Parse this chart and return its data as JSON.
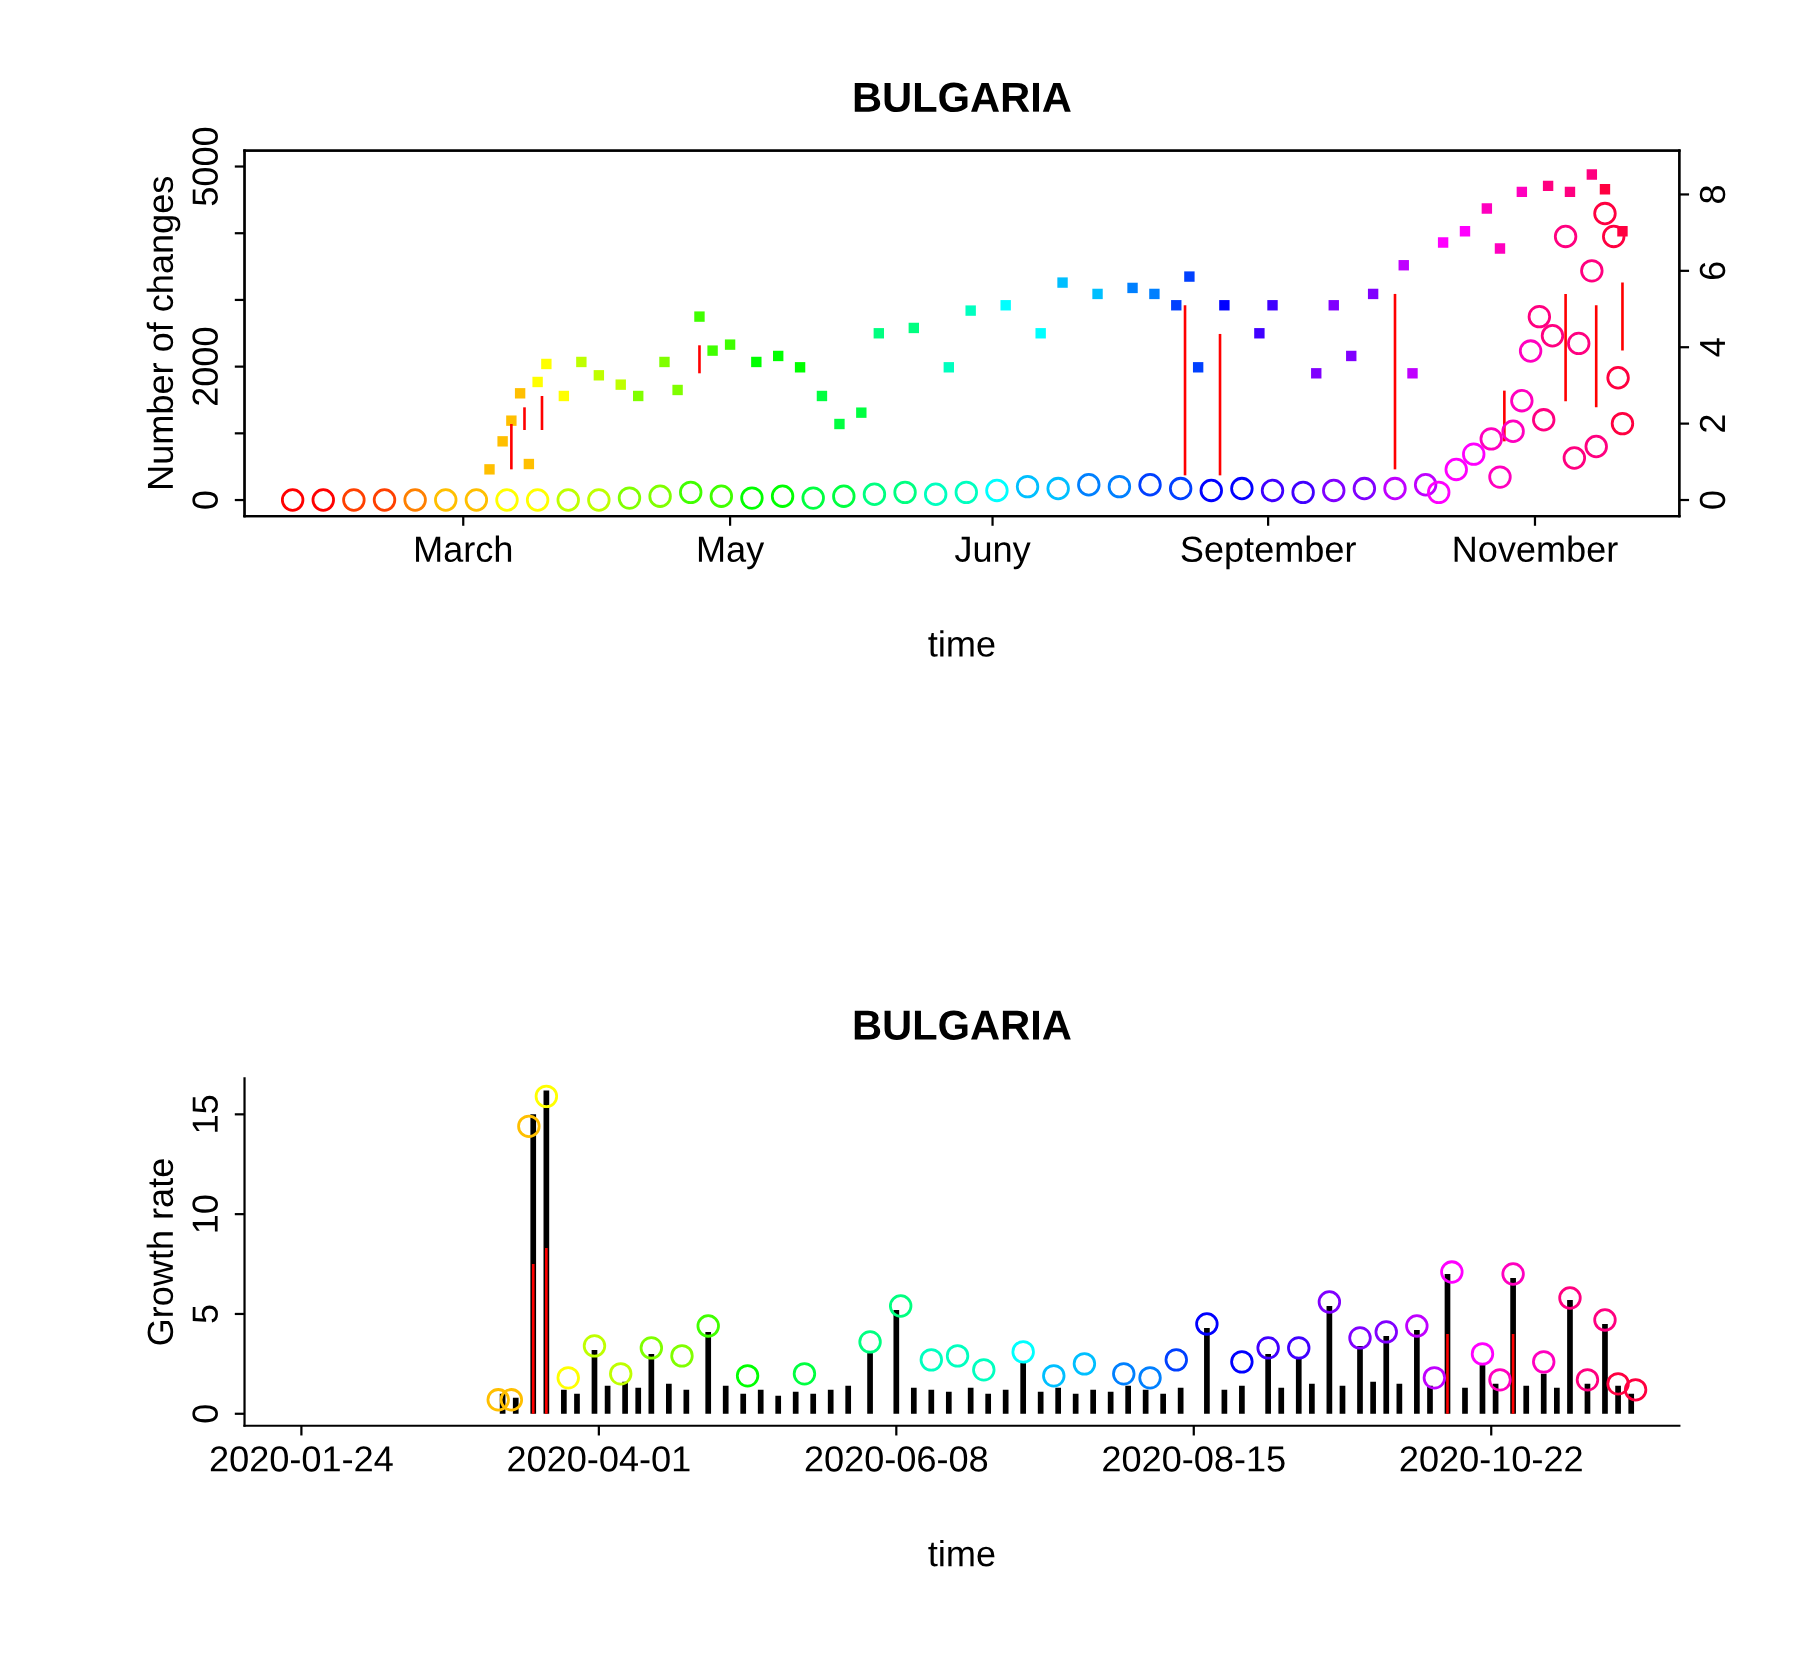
{
  "chart_data": [
    {
      "type": "scatter",
      "title": "BULGARIA",
      "xlabel": "time",
      "ylabel": "Number of changes",
      "xlim": [
        "2020-01-11",
        "2020-12-04"
      ],
      "xticks": [
        {
          "value": "2020-03-01",
          "label": "March"
        },
        {
          "value": "2020-05-01",
          "label": "May"
        },
        {
          "value": "2020-06-30",
          "label": "Juny"
        },
        {
          "value": "2020-09-01",
          "label": "September"
        },
        {
          "value": "2020-11-01",
          "label": "November"
        }
      ],
      "ylim": [
        -240,
        5240
      ],
      "yticks": [
        0,
        {
          "value": 1000,
          "label": null
        },
        2000,
        {
          "value": 3000,
          "label": null
        },
        {
          "value": 4000,
          "label": null
        },
        5000
      ],
      "y2lim": [
        -0.42,
        9.15
      ],
      "y2ticks": [
        0,
        2,
        4,
        6,
        8
      ],
      "legend": false,
      "grid": false,
      "series": [
        {
          "marker": "square",
          "x": [
            "2020-03-07",
            "2020-03-10",
            "2020-03-12",
            "2020-03-14",
            "2020-03-16",
            "2020-03-18",
            "2020-03-20",
            "2020-03-24",
            "2020-03-28",
            "2020-04-01",
            "2020-04-06",
            "2020-04-10",
            "2020-04-16",
            "2020-04-19",
            "2020-04-24",
            "2020-04-27",
            "2020-05-01",
            "2020-05-07",
            "2020-05-12",
            "2020-05-17",
            "2020-05-22",
            "2020-05-26",
            "2020-05-31",
            "2020-06-04",
            "2020-06-12",
            "2020-06-20",
            "2020-06-25",
            "2020-07-03",
            "2020-07-11",
            "2020-07-16",
            "2020-07-24",
            "2020-08-01",
            "2020-08-06",
            "2020-08-11",
            "2020-08-14",
            "2020-08-16",
            "2020-08-22",
            "2020-08-30",
            "2020-09-02",
            "2020-09-12",
            "2020-09-16",
            "2020-09-20",
            "2020-09-25",
            "2020-10-02",
            "2020-10-04",
            "2020-10-11",
            "2020-10-16",
            "2020-10-21",
            "2020-10-24",
            "2020-10-29",
            "2020-11-04",
            "2020-11-09",
            "2020-11-14",
            "2020-11-17",
            "2020-11-21"
          ],
          "values": [
            460,
            880,
            1190,
            1600,
            540,
            1770,
            2040,
            1560,
            2070,
            1870,
            1730,
            1560,
            2070,
            1650,
            2750,
            2240,
            2330,
            2070,
            2160,
            1990,
            1560,
            1140,
            1310,
            2500,
            2580,
            1990,
            2840,
            2920,
            2500,
            3260,
            3090,
            3180,
            3090,
            2920,
            3350,
            1990,
            2920,
            2500,
            2920,
            1900,
            2920,
            2160,
            3090,
            3520,
            1900,
            3860,
            4030,
            4370,
            3770,
            4620,
            4710,
            4620,
            4880,
            4660,
            4030
          ],
          "colors": [
            "#ffbf00",
            "#ffbf00",
            "#ffbf00",
            "#ffbf00",
            "#ffbf00",
            "#ffff00",
            "#ffff00",
            "#ffff00",
            "#bfff00",
            "#bfff00",
            "#bfff00",
            "#80ff00",
            "#80ff00",
            "#80ff00",
            "#40ff00",
            "#40ff00",
            "#40ff00",
            "#00ff00",
            "#00ff00",
            "#00ff00",
            "#00ff40",
            "#00ff40",
            "#00ff40",
            "#00ff80",
            "#00ff80",
            "#00ffbf",
            "#00ffbf",
            "#00ffff",
            "#00ffff",
            "#00bfff",
            "#00bfff",
            "#0080ff",
            "#0080ff",
            "#0040ff",
            "#0040ff",
            "#0040ff",
            "#0000ff",
            "#4000ff",
            "#4000ff",
            "#8000ff",
            "#8000ff",
            "#8000ff",
            "#8000ff",
            "#bf00ff",
            "#bf00ff",
            "#ff00ff",
            "#ff00ff",
            "#ff00bf",
            "#ff00bf",
            "#ff00bf",
            "#ff0080",
            "#ff0080",
            "#ff0080",
            "#ff0040",
            "#ff0040"
          ]
        },
        {
          "marker": "circle",
          "axis": "y2",
          "x": [
            "2020-01-22",
            "2020-01-29",
            "2020-02-05",
            "2020-02-12",
            "2020-02-19",
            "2020-02-26",
            "2020-03-04",
            "2020-03-11",
            "2020-03-18",
            "2020-03-25",
            "2020-04-01",
            "2020-04-08",
            "2020-04-15",
            "2020-04-22",
            "2020-04-29",
            "2020-05-06",
            "2020-05-13",
            "2020-05-20",
            "2020-05-27",
            "2020-06-03",
            "2020-06-10",
            "2020-06-17",
            "2020-06-24",
            "2020-07-01",
            "2020-07-08",
            "2020-07-15",
            "2020-07-22",
            "2020-07-29",
            "2020-08-05",
            "2020-08-12",
            "2020-08-19",
            "2020-08-26",
            "2020-09-02",
            "2020-09-09",
            "2020-09-16",
            "2020-09-23",
            "2020-09-30",
            "2020-10-07",
            "2020-10-10",
            "2020-10-14",
            "2020-10-18",
            "2020-10-22",
            "2020-10-24",
            "2020-10-27",
            "2020-10-29",
            "2020-10-31",
            "2020-11-02",
            "2020-11-03",
            "2020-11-05",
            "2020-11-08",
            "2020-11-10",
            "2020-11-11",
            "2020-11-14",
            "2020-11-15",
            "2020-11-17",
            "2020-11-19",
            "2020-11-20",
            "2020-11-21"
          ],
          "values": [
            0,
            0,
            0,
            0,
            0,
            0,
            0,
            0,
            0,
            0,
            0,
            0.05,
            0.1,
            0.2,
            0.1,
            0.05,
            0.1,
            0.05,
            0.1,
            0.15,
            0.2,
            0.15,
            0.2,
            0.25,
            0.35,
            0.3,
            0.4,
            0.35,
            0.4,
            0.3,
            0.25,
            0.3,
            0.25,
            0.2,
            0.25,
            0.3,
            0.3,
            0.4,
            0.2,
            0.8,
            1.2,
            1.6,
            0.6,
            1.8,
            2.6,
            3.9,
            4.8,
            2.1,
            4.3,
            6.9,
            1.1,
            4.1,
            6.0,
            1.4,
            7.5,
            6.9,
            3.2,
            2.0
          ],
          "colors": [
            "#ff0000",
            "#ff0000",
            "#ff4000",
            "#ff4000",
            "#ff8000",
            "#ffbf00",
            "#ffbf00",
            "#ffff00",
            "#ffff00",
            "#bfff00",
            "#bfff00",
            "#80ff00",
            "#80ff00",
            "#40ff00",
            "#40ff00",
            "#00ff00",
            "#00ff00",
            "#00ff40",
            "#00ff40",
            "#00ff80",
            "#00ff80",
            "#00ffbf",
            "#00ffbf",
            "#00ffff",
            "#00bfff",
            "#00bfff",
            "#0080ff",
            "#0080ff",
            "#0040ff",
            "#0040ff",
            "#0000ff",
            "#0000ff",
            "#4000ff",
            "#4000ff",
            "#8000ff",
            "#8000ff",
            "#bf00ff",
            "#bf00ff",
            "#ff00ff",
            "#ff00ff",
            "#ff00ff",
            "#ff00bf",
            "#ff00bf",
            "#ff00bf",
            "#ff00bf",
            "#ff00bf",
            "#ff0080",
            "#ff0080",
            "#ff0080",
            "#ff0080",
            "#ff0080",
            "#ff0080",
            "#ff0080",
            "#ff0080",
            "#ff0040",
            "#ff0040",
            "#ff0040",
            "#ff0040"
          ]
        },
        {
          "type": "bar",
          "color": "#ff0000",
          "x": [
            "2020-03-12",
            "2020-03-15",
            "2020-03-19",
            "2020-04-24",
            "2020-08-13",
            "2020-08-21",
            "2020-09-30",
            "2020-10-25",
            "2020-11-08",
            "2020-11-15",
            "2020-11-21"
          ],
          "base": [
            460,
            1050,
            1050,
            1900,
            370,
            370,
            460,
            880,
            1480,
            1390,
            2240
          ],
          "values": [
            680,
            340,
            510,
            420,
            2550,
            2120,
            2630,
            760,
            1610,
            1530,
            1020
          ]
        }
      ]
    },
    {
      "type": "bar",
      "title": "BULGARIA",
      "xlabel": "time",
      "ylabel": "Growth rate",
      "xlim": [
        "2020-01-11",
        "2020-12-04"
      ],
      "xticks": [
        {
          "value": "2020-01-24",
          "label": "2020-01-24"
        },
        {
          "value": "2020-04-01",
          "label": "2020-04-01"
        },
        {
          "value": "2020-06-08",
          "label": "2020-06-08"
        },
        {
          "value": "2020-08-15",
          "label": "2020-08-15"
        },
        {
          "value": "2020-10-22",
          "label": "2020-10-22"
        }
      ],
      "ylim": [
        -0.6,
        16.8
      ],
      "yticks": [
        0,
        5,
        10,
        15
      ],
      "legend": false,
      "grid": false,
      "series": [
        {
          "color": "#000000",
          "x": [
            "2020-03-10",
            "2020-03-13",
            "2020-03-17",
            "2020-03-20",
            "2020-03-24",
            "2020-03-27",
            "2020-03-31",
            "2020-04-03",
            "2020-04-07",
            "2020-04-10",
            "2020-04-13",
            "2020-04-17",
            "2020-04-21",
            "2020-04-26",
            "2020-04-30",
            "2020-05-04",
            "2020-05-08",
            "2020-05-12",
            "2020-05-16",
            "2020-05-20",
            "2020-05-24",
            "2020-05-28",
            "2020-06-02",
            "2020-06-08",
            "2020-06-12",
            "2020-06-16",
            "2020-06-20",
            "2020-06-25",
            "2020-06-29",
            "2020-07-03",
            "2020-07-07",
            "2020-07-11",
            "2020-07-15",
            "2020-07-19",
            "2020-07-23",
            "2020-07-27",
            "2020-07-31",
            "2020-08-04",
            "2020-08-08",
            "2020-08-12",
            "2020-08-18",
            "2020-08-22",
            "2020-08-26",
            "2020-09-01",
            "2020-09-04",
            "2020-09-08",
            "2020-09-11",
            "2020-09-15",
            "2020-09-18",
            "2020-09-22",
            "2020-09-25",
            "2020-09-28",
            "2020-10-01",
            "2020-10-05",
            "2020-10-08",
            "2020-10-12",
            "2020-10-16",
            "2020-10-20",
            "2020-10-23",
            "2020-10-27",
            "2020-10-30",
            "2020-11-03",
            "2020-11-06",
            "2020-11-09",
            "2020-11-13",
            "2020-11-17",
            "2020-11-20",
            "2020-11-23"
          ],
          "values": [
            1.0,
            0.8,
            15.0,
            16.2,
            1.2,
            1.0,
            3.2,
            1.4,
            1.6,
            1.3,
            3.0,
            1.5,
            1.2,
            4.1,
            1.4,
            1.0,
            1.2,
            0.9,
            1.1,
            1.0,
            1.2,
            1.4,
            3.1,
            5.2,
            1.3,
            1.2,
            1.1,
            1.3,
            1.0,
            1.2,
            2.6,
            1.1,
            1.3,
            1.0,
            1.2,
            1.1,
            1.4,
            1.2,
            1.0,
            1.3,
            4.3,
            1.2,
            1.4,
            3.0,
            1.3,
            2.8,
            1.5,
            5.4,
            1.4,
            3.4,
            1.6,
            3.9,
            1.5,
            4.2,
            1.4,
            7.0,
            1.3,
            2.5,
            1.5,
            6.8,
            1.4,
            2.0,
            1.3,
            5.7,
            1.5,
            4.5,
            1.4,
            1.0
          ]
        },
        {
          "color": "#ff0000",
          "x": [
            "2020-03-17",
            "2020-03-20",
            "2020-10-12",
            "2020-10-27"
          ],
          "values": [
            7.5,
            8.3,
            4.0,
            4.0
          ]
        },
        {
          "type": "scatter",
          "marker": "circle",
          "x": [
            "2020-03-09",
            "2020-03-12",
            "2020-03-16",
            "2020-03-20",
            "2020-03-25",
            "2020-03-31",
            "2020-04-06",
            "2020-04-13",
            "2020-04-20",
            "2020-04-26",
            "2020-05-05",
            "2020-05-18",
            "2020-06-02",
            "2020-06-09",
            "2020-06-16",
            "2020-06-22",
            "2020-06-28",
            "2020-07-07",
            "2020-07-14",
            "2020-07-21",
            "2020-07-30",
            "2020-08-05",
            "2020-08-11",
            "2020-08-18",
            "2020-08-26",
            "2020-09-01",
            "2020-09-08",
            "2020-09-15",
            "2020-09-22",
            "2020-09-28",
            "2020-10-05",
            "2020-10-09",
            "2020-10-13",
            "2020-10-20",
            "2020-10-24",
            "2020-10-27",
            "2020-11-03",
            "2020-11-09",
            "2020-11-13",
            "2020-11-17",
            "2020-11-20",
            "2020-11-24"
          ],
          "values": [
            0.7,
            0.7,
            14.4,
            15.9,
            1.8,
            3.4,
            2.0,
            3.3,
            2.9,
            4.4,
            1.9,
            2.0,
            3.6,
            5.4,
            2.7,
            2.9,
            2.2,
            3.1,
            1.9,
            2.5,
            2.0,
            1.8,
            2.7,
            4.5,
            2.6,
            3.3,
            3.3,
            5.6,
            3.8,
            4.1,
            4.4,
            1.8,
            7.1,
            3.0,
            1.7,
            7.0,
            2.6,
            5.8,
            1.7,
            4.7,
            1.5,
            1.2
          ],
          "colors": [
            "#ffbf00",
            "#ffbf00",
            "#ffbf00",
            "#ffff00",
            "#ffff00",
            "#bfff00",
            "#bfff00",
            "#80ff00",
            "#80ff00",
            "#40ff00",
            "#00ff00",
            "#00ff40",
            "#00ff80",
            "#00ff80",
            "#00ffbf",
            "#00ffbf",
            "#00ffbf",
            "#00ffff",
            "#00bfff",
            "#00bfff",
            "#0080ff",
            "#0080ff",
            "#0040ff",
            "#0000ff",
            "#0000ff",
            "#4000ff",
            "#4000ff",
            "#8000ff",
            "#8000ff",
            "#8000ff",
            "#bf00ff",
            "#bf00ff",
            "#ff00ff",
            "#ff00ff",
            "#ff00bf",
            "#ff00bf",
            "#ff00bf",
            "#ff0080",
            "#ff0080",
            "#ff0080",
            "#ff0040",
            "#ff0040"
          ]
        }
      ]
    }
  ]
}
